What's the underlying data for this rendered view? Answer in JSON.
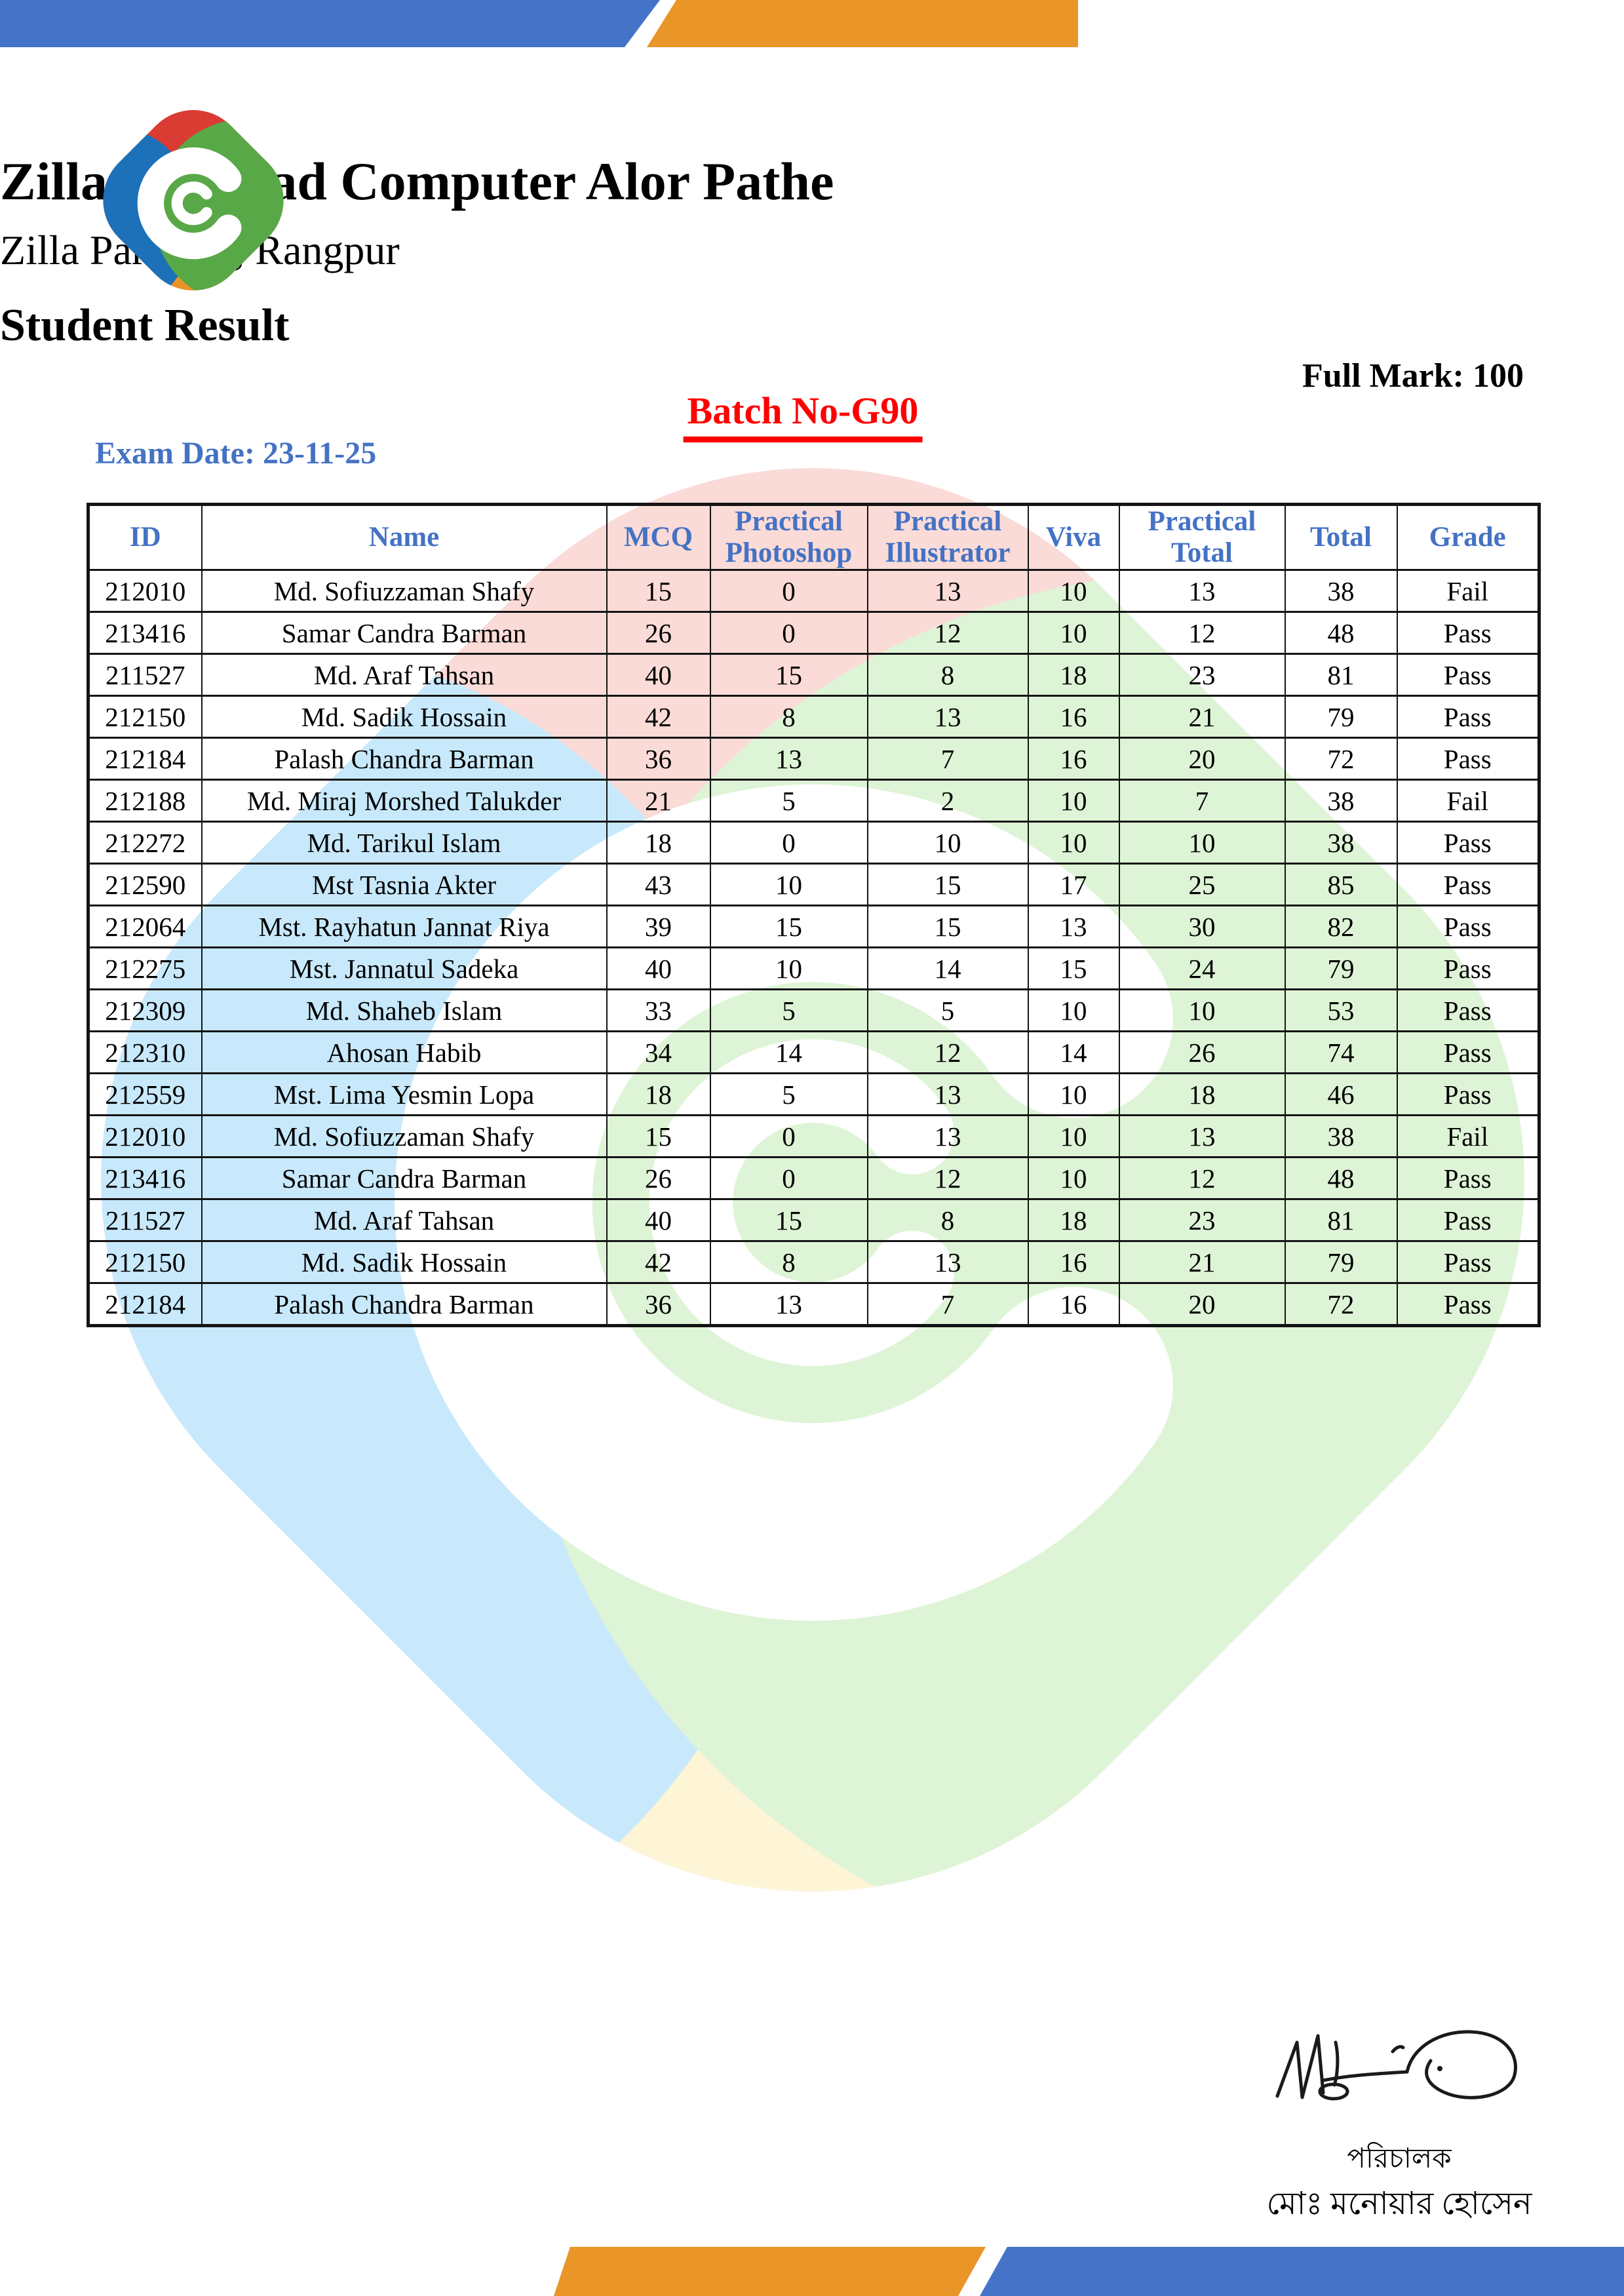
{
  "document": {
    "org_name": "Zilla Parishad Computer Alor Pathe",
    "org_location": "Zilla Parishad, Rangpur",
    "title": "Student Result",
    "full_mark": "Full Mark: 100",
    "batch": "Batch No-G90",
    "exam_date": "Exam Date: 23-11-25"
  },
  "table": {
    "columns": [
      "ID",
      "Name",
      "MCQ",
      "Practical Photoshop",
      "Practical Illustrator",
      "Viva",
      "Practical Total",
      "Total",
      "Grade"
    ],
    "column_keys": [
      "id",
      "name",
      "mcq",
      "practical_photoshop",
      "practical_illustrator",
      "viva",
      "practical_total",
      "total",
      "grade"
    ],
    "rows": [
      {
        "id": "212010",
        "name": "Md. Sofiuzzaman Shafy",
        "mcq": "15",
        "practical_photoshop": "0",
        "practical_illustrator": "13",
        "viva": "10",
        "practical_total": "13",
        "total": "38",
        "grade": "Fail",
        "red": [
          "mcq"
        ]
      },
      {
        "id": "213416",
        "name": "Samar Candra Barman",
        "mcq": "26",
        "practical_photoshop": "0",
        "practical_illustrator": "12",
        "viva": "10",
        "practical_total": "12",
        "total": "48",
        "grade": "Pass",
        "red": []
      },
      {
        "id": "211527",
        "name": "Md. Araf Tahsan",
        "mcq": "40",
        "practical_photoshop": "15",
        "practical_illustrator": "8",
        "viva": "18",
        "practical_total": "23",
        "total": "81",
        "grade": "Pass",
        "red": []
      },
      {
        "id": "212150",
        "name": "Md. Sadik Hossain",
        "mcq": "42",
        "practical_photoshop": "8",
        "practical_illustrator": "13",
        "viva": "16",
        "practical_total": "21",
        "total": "79",
        "grade": "Pass",
        "red": []
      },
      {
        "id": "212184",
        "name": "Palash Chandra Barman",
        "mcq": "36",
        "practical_photoshop": "13",
        "practical_illustrator": "7",
        "viva": "16",
        "practical_total": "20",
        "total": "72",
        "grade": "Pass",
        "red": []
      },
      {
        "id": "212188",
        "name": "Md. Miraj Morshed Talukder",
        "mcq": "21",
        "practical_photoshop": "5",
        "practical_illustrator": "2",
        "viva": "10",
        "practical_total": "7",
        "total": "38",
        "grade": "Fail",
        "red": [
          "practical_photoshop",
          "practical_illustrator",
          "practical_total"
        ]
      },
      {
        "id": "212272",
        "name": "Md. Tarikul Islam",
        "mcq": "18",
        "practical_photoshop": "0",
        "practical_illustrator": "10",
        "viva": "10",
        "practical_total": "10",
        "total": "38",
        "grade": "Pass",
        "red": []
      },
      {
        "id": "212590",
        "name": "Mst Tasnia Akter",
        "mcq": "43",
        "practical_photoshop": "10",
        "practical_illustrator": "15",
        "viva": "17",
        "practical_total": "25",
        "total": "85",
        "grade": "Pass",
        "red": []
      },
      {
        "id": "212064",
        "name": "Mst. Rayhatun Jannat Riya",
        "mcq": "39",
        "practical_photoshop": "15",
        "practical_illustrator": "15",
        "viva": "13",
        "practical_total": "30",
        "total": "82",
        "grade": "Pass",
        "red": []
      },
      {
        "id": "212275",
        "name": "Mst. Jannatul Sadeka",
        "mcq": "40",
        "practical_photoshop": "10",
        "practical_illustrator": "14",
        "viva": "15",
        "practical_total": "24",
        "total": "79",
        "grade": "Pass",
        "red": []
      },
      {
        "id": "212309",
        "name": "Md. Shaheb Islam",
        "mcq": "33",
        "practical_photoshop": "5",
        "practical_illustrator": "5",
        "viva": "10",
        "practical_total": "10",
        "total": "53",
        "grade": "Pass",
        "red": []
      },
      {
        "id": "212310",
        "name": "Ahosan Habib",
        "mcq": "34",
        "practical_photoshop": "14",
        "practical_illustrator": "12",
        "viva": "14",
        "practical_total": "26",
        "total": "74",
        "grade": "Pass",
        "red": []
      },
      {
        "id": "212559",
        "name": "Mst. Lima Yesmin Lopa",
        "mcq": "18",
        "practical_photoshop": "5",
        "practical_illustrator": "13",
        "viva": "10",
        "practical_total": "18",
        "total": "46",
        "grade": "Pass",
        "red": []
      },
      {
        "id": "212010",
        "name": "Md. Sofiuzzaman Shafy",
        "mcq": "15",
        "practical_photoshop": "0",
        "practical_illustrator": "13",
        "viva": "10",
        "practical_total": "13",
        "total": "38",
        "grade": "Fail",
        "red": [
          "mcq"
        ]
      },
      {
        "id": "213416",
        "name": "Samar Candra Barman",
        "mcq": "26",
        "practical_photoshop": "0",
        "practical_illustrator": "12",
        "viva": "10",
        "practical_total": "12",
        "total": "48",
        "grade": "Pass",
        "red": []
      },
      {
        "id": "211527",
        "name": "Md. Araf Tahsan",
        "mcq": "40",
        "practical_photoshop": "15",
        "practical_illustrator": "8",
        "viva": "18",
        "practical_total": "23",
        "total": "81",
        "grade": "Pass",
        "red": []
      },
      {
        "id": "212150",
        "name": "Md. Sadik Hossain",
        "mcq": "42",
        "practical_photoshop": "8",
        "practical_illustrator": "13",
        "viva": "16",
        "practical_total": "21",
        "total": "79",
        "grade": "Pass",
        "red": []
      },
      {
        "id": "212184",
        "name": "Palash Chandra Barman",
        "mcq": "36",
        "practical_photoshop": "13",
        "practical_illustrator": "7",
        "viva": "16",
        "practical_total": "20",
        "total": "72",
        "grade": "Pass",
        "red": []
      }
    ]
  },
  "footer": {
    "designation": "পরিচালক",
    "signatory": "মোঃ মনোয়ার হোসেন"
  },
  "colors": {
    "banner_blue": "#4473c8",
    "banner_orange": "#ea9528",
    "header_text_blue": "#4472c4",
    "batch_red": "#ff0000",
    "pass_green": "#1e7b1e",
    "fail_red": "#ff0000",
    "logo_red": "#da3b32",
    "logo_blue": "#1d71b8",
    "logo_green": "#59a847",
    "logo_orange": "#ea9428",
    "watermark_pink": "#fadbd7",
    "watermark_blue": "#c8e9fb",
    "watermark_green": "#def4d6",
    "watermark_yellow": "#fdf5d6"
  }
}
